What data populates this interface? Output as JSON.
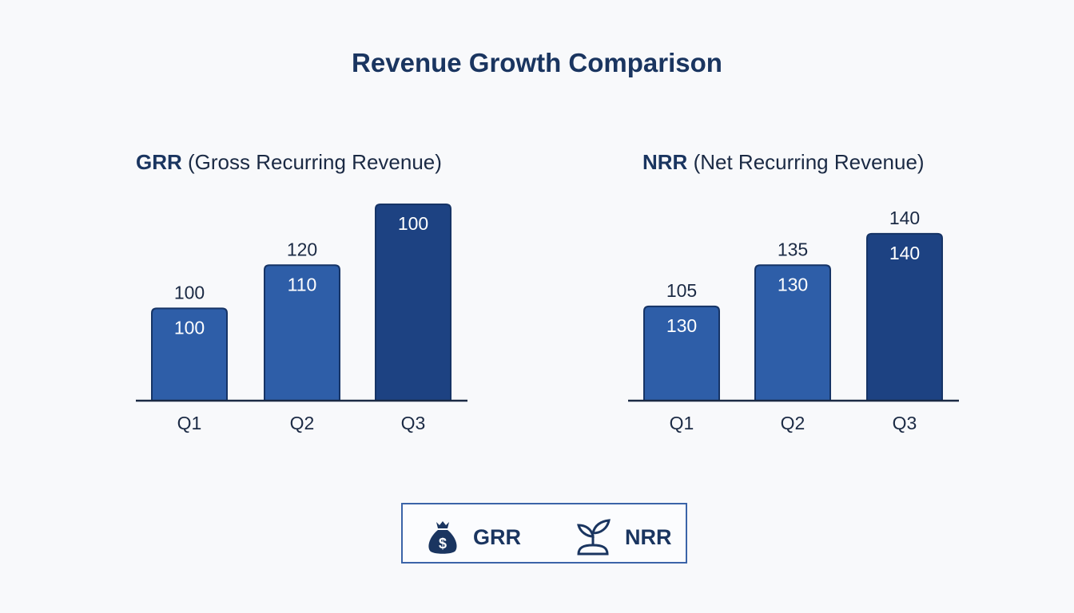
{
  "title": "Revenue Growth Comparison",
  "colors": {
    "title": "#1a3560",
    "bar_light": "#2e5ea8",
    "bar_dark": "#1d4282",
    "axis": "#1b2a44"
  },
  "chart_data": [
    {
      "type": "bar",
      "subtitle_bold": "GRR",
      "subtitle_rest": "(Gross Recurring Revenue)",
      "categories": [
        "Q1",
        "Q2",
        "Q3"
      ],
      "inside_labels": [
        "100",
        "110",
        "100"
      ],
      "above_labels": [
        "100",
        "120",
        ""
      ],
      "relative_height_percent": [
        47,
        69,
        100
      ],
      "bar_colors": [
        "#2e5ea8",
        "#2e5ea8",
        "#1d4282"
      ]
    },
    {
      "type": "bar",
      "subtitle_bold": "NRR",
      "subtitle_rest": "(Net Recurring Revenue)",
      "categories": [
        "Q1",
        "Q2",
        "Q3"
      ],
      "inside_labels": [
        "130",
        "130",
        "140"
      ],
      "above_labels": [
        "105",
        "135",
        "140"
      ],
      "relative_height_percent": [
        48,
        69,
        85
      ],
      "bar_colors": [
        "#2e5ea8",
        "#2e5ea8",
        "#1d4282"
      ]
    }
  ],
  "legend": {
    "items": [
      {
        "label": "GRR",
        "icon": "money-bag-icon"
      },
      {
        "label": "NRR",
        "icon": "sprout-icon"
      }
    ]
  }
}
